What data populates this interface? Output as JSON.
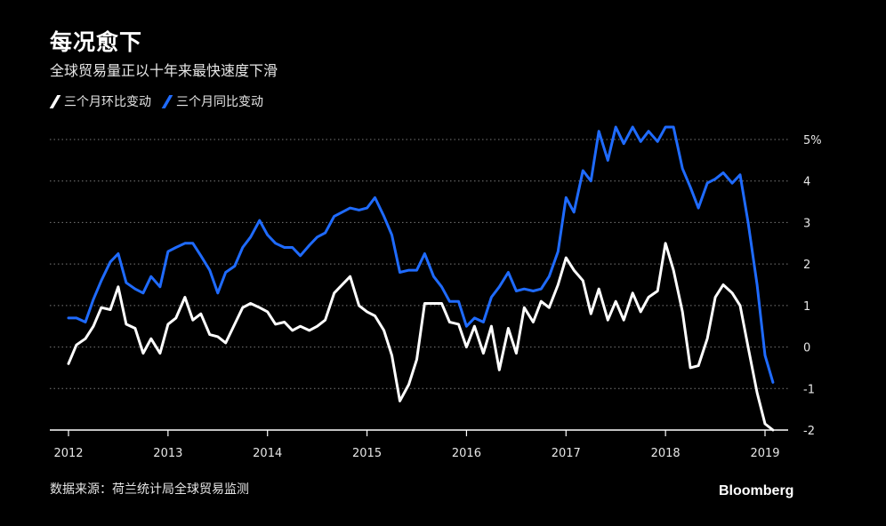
{
  "header": {
    "title": "每况愈下",
    "subtitle": "全球贸易量正以十年来最快速度下滑"
  },
  "footer": {
    "source": "数据来源：荷兰统计局全球贸易监测",
    "brand": "Bloomberg"
  },
  "chart_data": {
    "type": "line",
    "title": "每况愈下",
    "subtitle": "全球贸易量正以十年来最快速度下滑",
    "xlabel": "",
    "ylabel": "",
    "xlim": [
      2012,
      2019.17
    ],
    "ylim": [
      -2,
      5
    ],
    "y_ticks": [
      5,
      4,
      3,
      2,
      1,
      0,
      -1,
      -2
    ],
    "y_tick_labels": [
      "5%",
      "4",
      "3",
      "2",
      "1",
      "0",
      "-1",
      "-2"
    ],
    "x_ticks": [
      2012,
      2013,
      2014,
      2015,
      2016,
      2017,
      2018,
      2019
    ],
    "x_tick_labels": [
      "2012",
      "2013",
      "2014",
      "2015",
      "2016",
      "2017",
      "2018",
      "2019"
    ],
    "grid": "horizontal-dotted",
    "legend_position": "top-left",
    "series": [
      {
        "name": "三个月环比变动",
        "color": "#ffffff",
        "x": [
          2012.0,
          2012.08,
          2012.17,
          2012.25,
          2012.33,
          2012.42,
          2012.5,
          2012.58,
          2012.67,
          2012.75,
          2012.83,
          2012.92,
          2013.0,
          2013.08,
          2013.17,
          2013.25,
          2013.33,
          2013.42,
          2013.5,
          2013.58,
          2013.67,
          2013.75,
          2013.83,
          2013.92,
          2014.0,
          2014.08,
          2014.17,
          2014.25,
          2014.33,
          2014.42,
          2014.5,
          2014.58,
          2014.67,
          2014.75,
          2014.83,
          2014.92,
          2015.0,
          2015.08,
          2015.17,
          2015.25,
          2015.33,
          2015.42,
          2015.5,
          2015.58,
          2015.67,
          2015.75,
          2015.83,
          2015.92,
          2016.0,
          2016.08,
          2016.17,
          2016.25,
          2016.33,
          2016.42,
          2016.5,
          2016.58,
          2016.67,
          2016.75,
          2016.83,
          2016.92,
          2017.0,
          2017.08,
          2017.17,
          2017.25,
          2017.33,
          2017.42,
          2017.5,
          2017.58,
          2017.67,
          2017.75,
          2017.83,
          2017.92,
          2018.0,
          2018.08,
          2018.17,
          2018.25,
          2018.33,
          2018.42,
          2018.5,
          2018.58,
          2018.67,
          2018.75,
          2018.83,
          2018.92,
          2019.0,
          2019.08
        ],
        "values": [
          -0.4,
          0.05,
          0.2,
          0.5,
          0.95,
          0.9,
          1.45,
          0.55,
          0.45,
          -0.15,
          0.2,
          -0.15,
          0.55,
          0.7,
          1.2,
          0.65,
          0.8,
          0.3,
          0.25,
          0.1,
          0.55,
          0.95,
          1.05,
          0.95,
          0.85,
          0.55,
          0.6,
          0.4,
          0.5,
          0.4,
          0.5,
          0.65,
          1.3,
          1.5,
          1.7,
          1.0,
          0.85,
          0.75,
          0.4,
          -0.2,
          -1.3,
          -0.9,
          -0.3,
          1.05,
          1.05,
          1.05,
          0.6,
          0.55,
          0.0,
          0.5,
          -0.15,
          0.5,
          -0.55,
          0.45,
          -0.15,
          0.95,
          0.6,
          1.1,
          0.95,
          1.5,
          2.15,
          1.85,
          1.6,
          0.8,
          1.4,
          0.65,
          1.1,
          0.65,
          1.3,
          0.85,
          1.2,
          1.35,
          2.5,
          1.85,
          0.85,
          -0.5,
          -0.45,
          0.2,
          1.2,
          1.5,
          1.3,
          1.0,
          0.0,
          -1.1,
          -1.85,
          -2.0
        ]
      },
      {
        "name": "三个月同比变动",
        "color": "#1f6bff",
        "x": [
          2012.0,
          2012.08,
          2012.17,
          2012.25,
          2012.33,
          2012.42,
          2012.5,
          2012.58,
          2012.67,
          2012.75,
          2012.83,
          2012.92,
          2013.0,
          2013.08,
          2013.17,
          2013.25,
          2013.33,
          2013.42,
          2013.5,
          2013.58,
          2013.67,
          2013.75,
          2013.83,
          2013.92,
          2014.0,
          2014.08,
          2014.17,
          2014.25,
          2014.33,
          2014.42,
          2014.5,
          2014.58,
          2014.67,
          2014.75,
          2014.83,
          2014.92,
          2015.0,
          2015.08,
          2015.17,
          2015.25,
          2015.33,
          2015.42,
          2015.5,
          2015.58,
          2015.67,
          2015.75,
          2015.83,
          2015.92,
          2016.0,
          2016.08,
          2016.17,
          2016.25,
          2016.33,
          2016.42,
          2016.5,
          2016.58,
          2016.67,
          2016.75,
          2016.83,
          2016.92,
          2017.0,
          2017.08,
          2017.17,
          2017.25,
          2017.33,
          2017.42,
          2017.5,
          2017.58,
          2017.67,
          2017.75,
          2017.83,
          2017.92,
          2018.0,
          2018.08,
          2018.17,
          2018.25,
          2018.33,
          2018.42,
          2018.5,
          2018.58,
          2018.67,
          2018.75,
          2018.83,
          2018.92,
          2019.0,
          2019.08
        ],
        "values": [
          0.7,
          0.7,
          0.6,
          1.15,
          1.6,
          2.05,
          2.25,
          1.55,
          1.4,
          1.3,
          1.7,
          1.45,
          2.3,
          2.4,
          2.5,
          2.5,
          2.2,
          1.85,
          1.3,
          1.8,
          1.95,
          2.4,
          2.65,
          3.05,
          2.7,
          2.5,
          2.4,
          2.4,
          2.2,
          2.45,
          2.65,
          2.75,
          3.15,
          3.25,
          3.35,
          3.3,
          3.35,
          3.6,
          3.15,
          2.7,
          1.8,
          1.85,
          1.85,
          2.25,
          1.7,
          1.45,
          1.1,
          1.1,
          0.5,
          0.7,
          0.6,
          1.2,
          1.45,
          1.8,
          1.35,
          1.4,
          1.35,
          1.4,
          1.7,
          2.3,
          3.6,
          3.25,
          4.25,
          4.0,
          5.2,
          4.5,
          5.3,
          4.9,
          5.3,
          4.95,
          5.2,
          4.95,
          5.3,
          5.3,
          4.3,
          3.85,
          3.35,
          3.95,
          4.05,
          4.2,
          3.95,
          4.15,
          3.0,
          1.5,
          -0.2,
          -0.85
        ]
      }
    ]
  }
}
